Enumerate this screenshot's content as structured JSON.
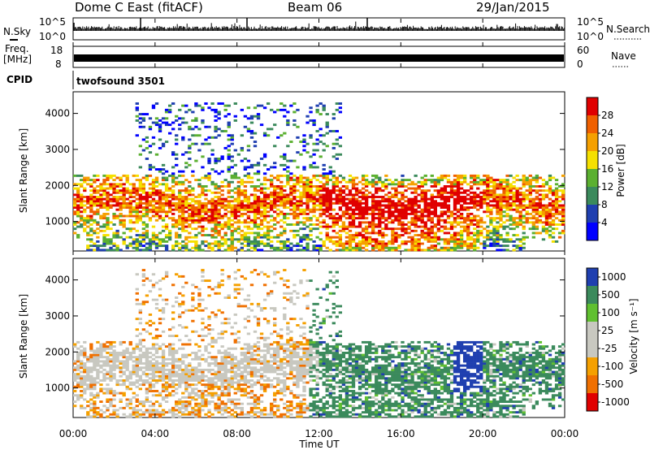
{
  "header": {
    "station": "Dome C East (fitACF)",
    "beam": "Beam 06",
    "date": "29/Jan/2015"
  },
  "panels": {
    "nsky": {
      "label": "N.Sky",
      "right_label": "N.Search",
      "ticks_left": [
        "10^5",
        "10^0"
      ],
      "ticks_right": [
        "10^5",
        "10^0"
      ]
    },
    "freq": {
      "label_line1": "Freq.",
      "label_line2": "[MHz]",
      "ticks_left": [
        "18",
        "8"
      ],
      "ticks_right": [
        "60",
        "0"
      ],
      "right_label": "Nave"
    },
    "cpid": {
      "label": "CPID",
      "value": "twofsound 3501"
    }
  },
  "colors": {
    "power_scale": [
      "#0000ff",
      "#1f3fb0",
      "#3b8a5c",
      "#5bb030",
      "#f5e000",
      "#f5a000",
      "#f06000",
      "#e00000"
    ],
    "velocity_scale": [
      "#e00000",
      "#f07000",
      "#f5a000",
      "#c8c8c0",
      "#c8c8c0",
      "#60c030",
      "#3b8a5c",
      "#1f3fb0"
    ]
  },
  "chart_data": [
    {
      "type": "heatmap",
      "title": "",
      "ylabel": "Slant Range [km]",
      "xlabel": "",
      "ylim": [
        180,
        4600
      ],
      "xlim": [
        "00:00",
        "24:00"
      ],
      "yticks": [
        "1000",
        "2000",
        "3000",
        "4000"
      ],
      "colorbar": {
        "label": "Power [dB]",
        "ticks": [
          "4",
          "8",
          "12",
          "16",
          "20",
          "24",
          "28"
        ],
        "range": [
          0,
          32
        ]
      }
    },
    {
      "type": "heatmap",
      "title": "",
      "ylabel": "Slant Range [km]",
      "xlabel": "Time UT",
      "ylim": [
        180,
        4600
      ],
      "xlim": [
        "00:00",
        "24:00"
      ],
      "yticks": [
        "1000",
        "2000",
        "3000",
        "4000"
      ],
      "xticks": [
        "00:00",
        "04:00",
        "08:00",
        "12:00",
        "16:00",
        "20:00",
        "00:00"
      ],
      "colorbar": {
        "label": "Velocity [m s⁻¹]",
        "ticks": [
          "1000",
          "500",
          "100",
          "25",
          "-25",
          "-100",
          "-500",
          "-1000"
        ]
      }
    }
  ]
}
